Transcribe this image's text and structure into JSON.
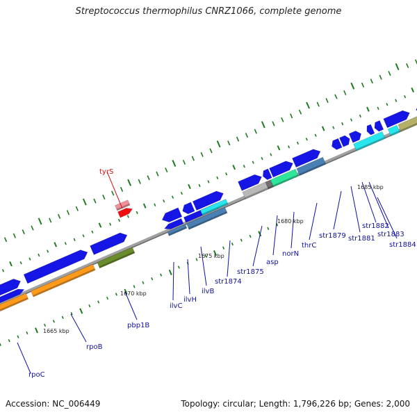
{
  "header": {
    "title": "Streptococcus thermophilus CNRZ1066, complete genome"
  },
  "footer": {
    "accession": "Accession: NC_006449",
    "summary": "Topology: circular; Length: 1,796,226 bp; Genes: 2,000"
  },
  "scale_labels": [
    "1665 kbp",
    "1670 kbp",
    "1675 kbp",
    "1680 kbp",
    "1685 kbp"
  ],
  "gene_labels": [
    "tyrS",
    "rpoC",
    "rpoB",
    "pbp1B",
    "ilvC",
    "ilvH",
    "ilvB",
    "str1874",
    "str1875",
    "asp",
    "norN",
    "thrC",
    "str1879",
    "str1881",
    "str1882",
    "str1883",
    "str1884"
  ],
  "colors": {
    "backbone": "#8a8a8a",
    "gene_blue": "#1515e6",
    "tick_green": "#1c7a1c",
    "label_blue": "#1010a0",
    "label_red": "#d01010",
    "orange": "#ff9a1a",
    "olive_green": "#6a8c2a",
    "steel_blue": "#4a80b4",
    "cyan": "#28e6ee",
    "grey": "#b8b8b8",
    "sea_green": "#2ee69a",
    "khaki": "#b4b06a",
    "pink": "#f0909a",
    "red": "#ee1010"
  }
}
